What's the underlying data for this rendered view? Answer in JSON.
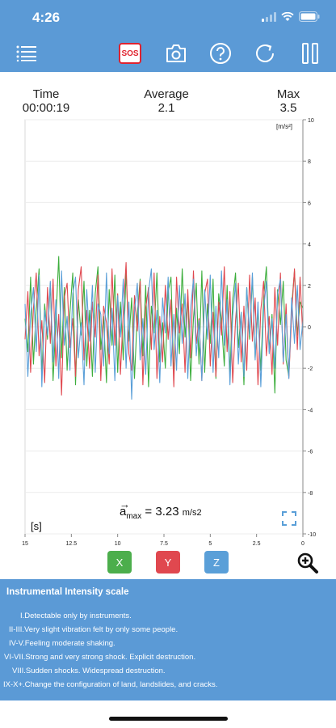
{
  "status": {
    "time": "4:26"
  },
  "toolbar": {
    "menu_icon": "menu-icon",
    "sos_label": "SOS",
    "camera_icon": "camera-icon",
    "help_icon": "help-icon",
    "refresh_icon": "refresh-icon",
    "pause_icon": "pause-icon"
  },
  "stats": {
    "time_label": "Time",
    "time_value": "00:00:19",
    "avg_label": "Average",
    "avg_value": "2.1",
    "max_label": "Max",
    "max_value": "3.5"
  },
  "chart_data": {
    "type": "line",
    "unit_label": "[m/s²]",
    "xlabel": "[s]",
    "xlim": [
      15,
      0
    ],
    "ylim": [
      -10,
      10
    ],
    "x_ticks": [
      "15",
      "12.5",
      "10",
      "7.5",
      "5",
      "2.5",
      "0"
    ],
    "y_ticks": [
      "10",
      "8",
      "6",
      "4",
      "2",
      "0",
      "-2",
      "-4",
      "-6",
      "-8",
      "-10"
    ],
    "grid": true,
    "series": [
      {
        "name": "X",
        "color": "#3dae3d",
        "values": [
          0.4,
          -1.2,
          2.4,
          -1.8,
          0.9,
          2.8,
          -2.3,
          1.1,
          -0.6,
          2.1,
          -2.6,
          0.3,
          3.4,
          -1.5,
          1.9,
          -2.1,
          0.7,
          2.6,
          -2.8,
          1.3,
          -0.4,
          2.2,
          -1.9,
          0.8,
          -2.4,
          1.6,
          2.9,
          -1.1,
          0.5,
          -2.7,
          1.8,
          -0.9,
          2.5,
          -2.2,
          1.2,
          -1.6,
          2.7,
          -0.7,
          1.4,
          -2.5,
          0.6,
          2.3,
          -1.4,
          2.0,
          -2.9,
          1.0,
          -0.3,
          2.6,
          -1.7,
          0.2,
          -2.0,
          1.7,
          2.4,
          -2.4,
          0.9,
          -1.3,
          2.8,
          -0.5,
          1.5,
          -2.6,
          0.4,
          2.1,
          -1.8,
          2.7,
          -2.2,
          1.1,
          -0.8,
          2.3,
          -2.5,
          1.6,
          0.3,
          -1.9,
          2.0,
          -2.3,
          1.3,
          2.6,
          -1.0,
          0.7,
          -2.8,
          1.9,
          -0.6,
          2.4,
          -1.5,
          0.8,
          -2.1,
          1.4,
          2.9,
          -1.2,
          0.6,
          -3.2,
          1.8,
          0.1,
          2.2,
          -1.6,
          -2.4,
          1.0,
          2.7,
          -0.4,
          1.2,
          0.9
        ]
      },
      {
        "name": "Y",
        "color": "#e0484f",
        "values": [
          -0.6,
          1.7,
          -2.2,
          0.9,
          2.6,
          -1.4,
          0.3,
          -2.7,
          1.9,
          -0.8,
          2.3,
          -1.9,
          0.6,
          -3.3,
          1.4,
          2.1,
          -1.0,
          0.4,
          -2.4,
          1.8,
          2.9,
          -1.6,
          0.8,
          -2.0,
          1.2,
          -0.5,
          2.5,
          -2.6,
          1.0,
          0.2,
          -1.8,
          2.8,
          -0.9,
          1.6,
          -2.3,
          0.7,
          3.1,
          -1.3,
          -2.1,
          1.5,
          -0.2,
          2.2,
          -2.8,
          0.9,
          1.9,
          -1.1,
          2.6,
          -2.5,
          0.5,
          -1.7,
          2.0,
          -0.6,
          1.3,
          -2.9,
          2.4,
          -0.3,
          1.1,
          -2.2,
          1.8,
          -1.5,
          2.7,
          -0.8,
          0.4,
          -2.6,
          1.6,
          2.3,
          -1.9,
          0.7,
          -2.4,
          1.2,
          -0.4,
          2.9,
          -1.2,
          1.7,
          -2.7,
          0.3,
          2.1,
          -1.7,
          1.0,
          -2.1,
          2.5,
          -0.7,
          1.4,
          -2.8,
          0.8,
          2.2,
          -1.4,
          0.5,
          -2.3,
          1.9,
          -0.9,
          2.6,
          -1.8,
          1.1,
          -2.5,
          0.6,
          2.8,
          -1.1,
          2.4,
          -0.5
        ]
      },
      {
        "name": "Z",
        "color": "#5a9fd8",
        "values": [
          1.1,
          -2.4,
          0.6,
          1.9,
          -1.2,
          2.5,
          -2.9,
          0.8,
          -0.4,
          2.2,
          -1.7,
          1.3,
          -2.5,
          2.7,
          -0.9,
          0.5,
          -2.1,
          1.6,
          2.4,
          -1.5,
          0.2,
          -2.8,
          1.8,
          -0.7,
          2.0,
          -2.2,
          1.1,
          0.6,
          -1.9,
          2.6,
          -1.3,
          0.9,
          -2.6,
          1.5,
          -0.5,
          2.3,
          -2.0,
          1.2,
          -3.5,
          0.7,
          2.1,
          -1.6,
          0.4,
          -2.3,
          1.7,
          2.8,
          -1.1,
          0.8,
          -2.7,
          1.4,
          -0.3,
          2.4,
          -1.9,
          0.6,
          -2.1,
          2.0,
          -0.8,
          1.6,
          -2.5,
          0.9,
          2.3,
          -1.4,
          0.3,
          -2.6,
          1.8,
          -0.6,
          2.5,
          -2.2,
          1.0,
          -1.5,
          2.7,
          -0.9,
          1.3,
          -2.8,
          0.5,
          2.1,
          -1.8,
          0.7,
          -2.4,
          1.9,
          -0.4,
          2.6,
          -1.6,
          1.2,
          -2.9,
          0.8,
          2.2,
          -1.3,
          0.4,
          -2.0,
          1.6,
          2.3,
          -1.7,
          0.6,
          -2.5,
          1.4,
          -0.8,
          2.0,
          -1.1,
          0.3
        ]
      }
    ]
  },
  "amax": {
    "symbol": "a",
    "subscript": "max",
    "value": "3.23",
    "unit": "m/s2"
  },
  "axis_buttons": [
    {
      "label": "X",
      "color": "#4cae4c"
    },
    {
      "label": "Y",
      "color": "#e0484f"
    },
    {
      "label": "Z",
      "color": "#5a9fd8"
    }
  ],
  "intensity": {
    "title": "Instrumental Intensity scale",
    "items": [
      "I.Detectable only by instruments.",
      "II-III.Very slight vibration felt by only some people.",
      "IV-V.Feeling moderate shaking.",
      "VI-VII.Strong and very strong shock. Explicit destruction.",
      "VIII.Sudden shocks. Widespread destruction.",
      "IX-X+.Change the configuration of land, landslides, and cracks."
    ]
  }
}
